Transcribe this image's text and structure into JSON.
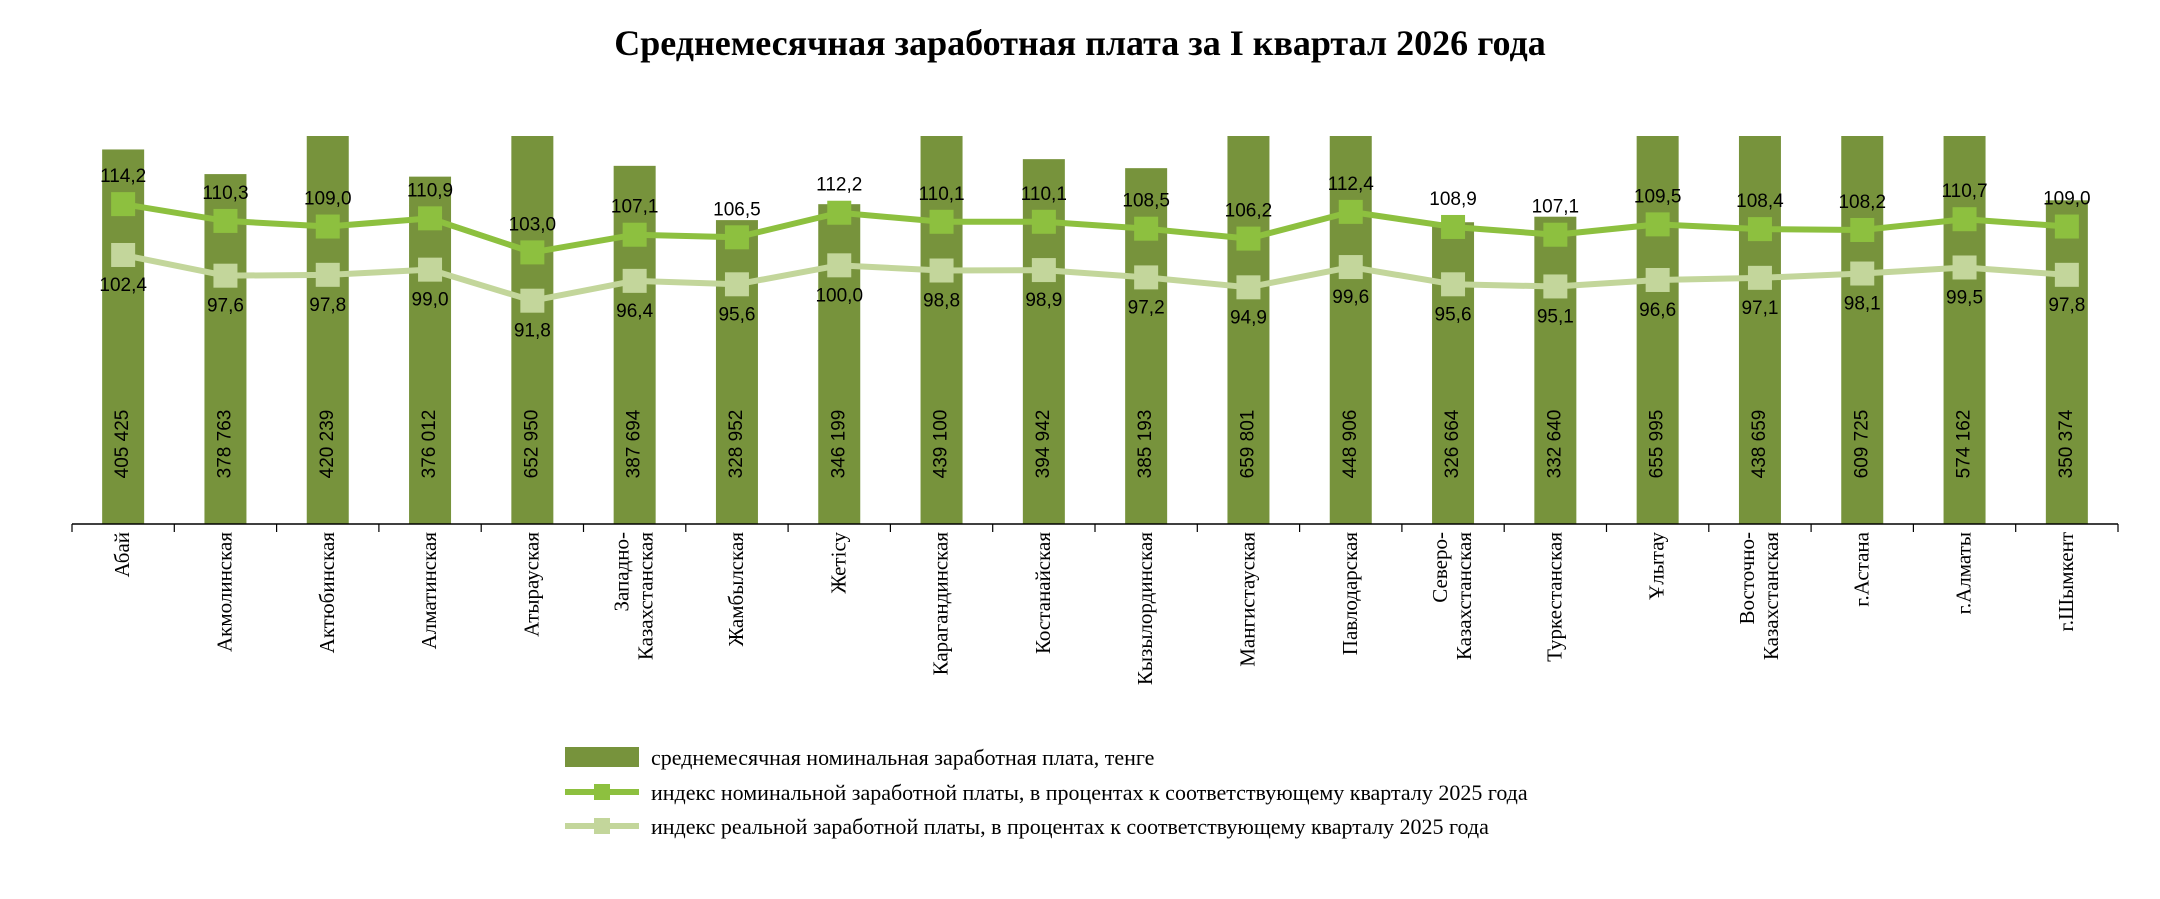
{
  "chart_data": {
    "type": "bar",
    "title": "Среднемесячная заработная плата за I квартал 2026 года",
    "categories": [
      [
        "Абай"
      ],
      [
        "Акмолинская"
      ],
      [
        "Актюбинская"
      ],
      [
        "Алматинская"
      ],
      [
        "Атырауская"
      ],
      [
        "Западно-",
        "Казахстанская"
      ],
      [
        "Жамбылская"
      ],
      [
        "Жетісу"
      ],
      [
        "Карагандинская"
      ],
      [
        "Костанайская"
      ],
      [
        "Кызылординская"
      ],
      [
        "Мангистауская"
      ],
      [
        "Павлодарская"
      ],
      [
        "Северо-",
        "Казахстанская"
      ],
      [
        "Туркестанская"
      ],
      [
        "Ұлытау"
      ],
      [
        "Восточно-",
        "Казахстанская"
      ],
      [
        "г.Астана"
      ],
      [
        "г.Алматы"
      ],
      [
        "г.Шымкент"
      ]
    ],
    "series": [
      {
        "name": "среднемесячная номинальная заработная плата, тенге",
        "type": "bar",
        "color": "#77933c",
        "values": [
          405425,
          378763,
          420239,
          376012,
          652950,
          387694,
          328952,
          346199,
          439100,
          394942,
          385193,
          659801,
          448906,
          326664,
          332640,
          655995,
          438659,
          609725,
          574162,
          350374
        ],
        "labels": [
          "405 425",
          "378 763",
          "420 239",
          "376 012",
          "652 950",
          "387 694",
          "328 952",
          "346 199",
          "439 100",
          "394 942",
          "385 193",
          "659 801",
          "448 906",
          "326 664",
          "332 640",
          "655 995",
          "438 659",
          "609 725",
          "574 162",
          "350 374"
        ]
      },
      {
        "name": "индекс номинальной заработной платы, в процентах к соответствующему кварталу 2025 года",
        "type": "line",
        "color": "#8dc03f",
        "values": [
          114.2,
          110.3,
          109.0,
          110.9,
          103.0,
          107.1,
          106.5,
          112.2,
          110.1,
          110.1,
          108.5,
          106.2,
          112.4,
          108.9,
          107.1,
          109.5,
          108.4,
          108.2,
          110.7,
          109.0
        ],
        "labels": [
          "114,2",
          "110,3",
          "109,0",
          "110,9",
          "103,0",
          "107,1",
          "106,5",
          "112,2",
          "110,1",
          "110,1",
          "108,5",
          "106,2",
          "112,4",
          "108,9",
          "107,1",
          "109,5",
          "108,4",
          "108,2",
          "110,7",
          "109,0"
        ]
      },
      {
        "name": "индекс реальной заработной платы, в процентах к соответствующему кварталу 2025 года",
        "type": "line",
        "color": "#c3d69b",
        "values": [
          102.4,
          97.6,
          97.8,
          99.0,
          91.8,
          96.4,
          95.6,
          100.0,
          98.8,
          98.9,
          97.2,
          94.9,
          99.6,
          95.6,
          95.1,
          96.6,
          97.1,
          98.1,
          99.5,
          97.8
        ],
        "labels": [
          "102,4",
          "97,6",
          "97,8",
          "99,0",
          "91,8",
          "96,4",
          "95,6",
          "100,0",
          "98,8",
          "98,9",
          "97,2",
          "94,9",
          "99,6",
          "95,6",
          "95,1",
          "96,6",
          "97,1",
          "98,1",
          "99,5",
          "97,8"
        ]
      }
    ],
    "bar_ylim": [
      0,
      420000
    ],
    "line_ylim": [
      40,
      130
    ],
    "legend_position": "bottom",
    "grid": false
  }
}
